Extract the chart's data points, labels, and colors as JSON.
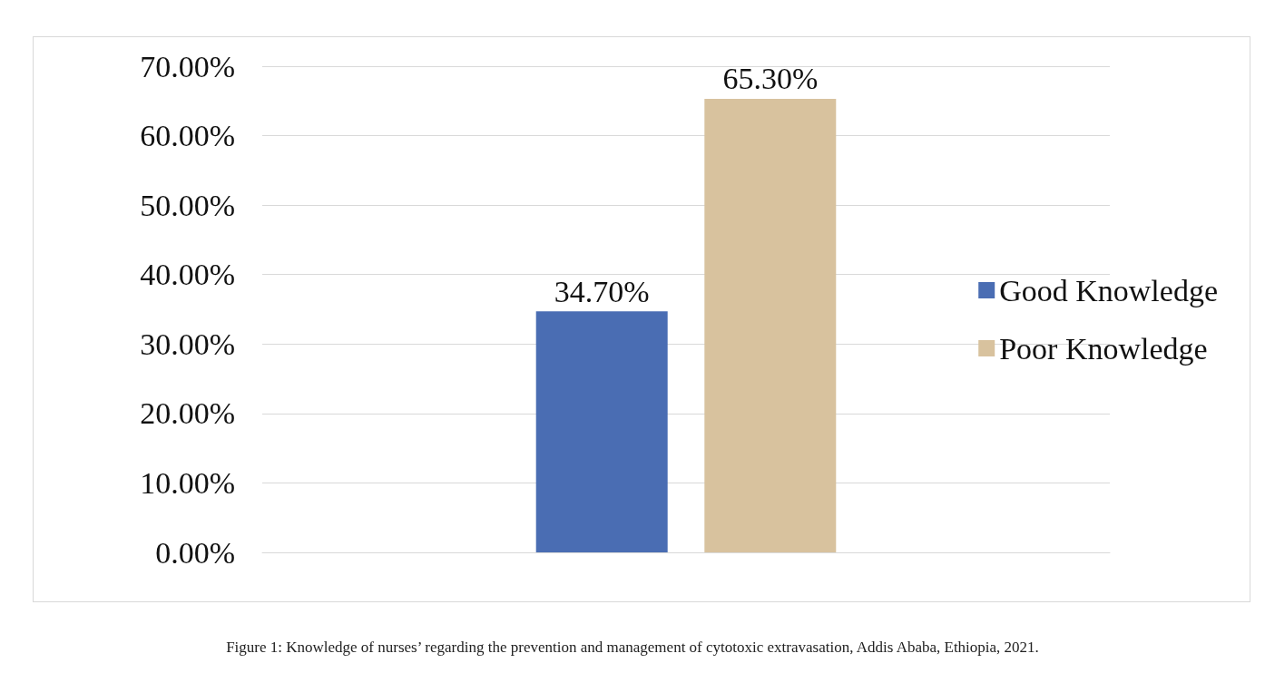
{
  "chart_data": {
    "type": "bar",
    "categories": [
      null
    ],
    "series": [
      {
        "name": "Good Knowledge",
        "color": "#4a6db3",
        "values": [
          34.7
        ],
        "value_labels": [
          "34.70%"
        ]
      },
      {
        "name": "Poor Knowledge",
        "color": "#d8c29e",
        "values": [
          65.3
        ],
        "value_labels": [
          "65.30%"
        ]
      }
    ],
    "ylim": [
      0,
      70
    ],
    "yticks": [
      {
        "value": 0,
        "label": "0.00%"
      },
      {
        "value": 10,
        "label": "10.00%"
      },
      {
        "value": 20,
        "label": "20.00%"
      },
      {
        "value": 30,
        "label": "30.00%"
      },
      {
        "value": 40,
        "label": "40.00%"
      },
      {
        "value": 50,
        "label": "50.00%"
      },
      {
        "value": 60,
        "label": "60.00%"
      },
      {
        "value": 70,
        "label": "70.00%"
      }
    ],
    "grid": "y",
    "legend": "right",
    "annotations": [
      "Figure 1: Knowledge of nurses’ regarding the prevention and management of cytotoxic extravasation, Addis Ababa, Ethiopia, 2021."
    ]
  }
}
